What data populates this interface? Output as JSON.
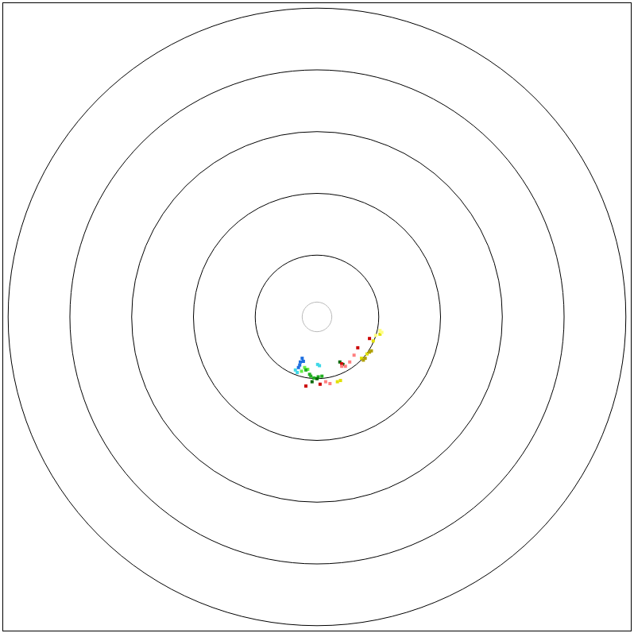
{
  "chart_data": {
    "type": "polar_scatter",
    "xlim": [
      -5.08,
      5.08
    ],
    "ylim": [
      -5.08,
      5.08
    ],
    "tick_labels": false,
    "grid": false,
    "rings": [
      1,
      2,
      3,
      4,
      5
    ],
    "center_ring": 0.24,
    "echoes": [
      {
        "color": "#1e6fe0",
        "points": [
          [
            -0.27,
            -0.73
          ],
          [
            -0.3,
            -0.82
          ],
          [
            -0.24,
            -0.67
          ],
          [
            -0.28,
            -0.78
          ],
          [
            -0.22,
            -0.72
          ]
        ]
      },
      {
        "color": "#40d8e8",
        "points": [
          [
            0.01,
            -0.77
          ],
          [
            -0.35,
            -0.86
          ],
          [
            0.04,
            -0.79
          ],
          [
            -0.32,
            -0.9
          ]
        ]
      },
      {
        "color": "#66ee44",
        "points": [
          [
            -0.2,
            -0.82
          ],
          [
            -0.15,
            -0.85
          ],
          [
            -0.25,
            -0.88
          ]
        ]
      },
      {
        "color": "#22b022",
        "points": [
          [
            -0.18,
            -0.86
          ],
          [
            -0.12,
            -0.93
          ],
          [
            -0.05,
            -0.99
          ],
          [
            0.08,
            -0.96
          ],
          [
            -0.1,
            -0.96
          ],
          [
            0.02,
            -0.97
          ]
        ]
      },
      {
        "color": "#0a6a0a",
        "points": [
          [
            0.37,
            -0.73
          ],
          [
            0.42,
            -0.77
          ],
          [
            0.0,
            -1.0
          ],
          [
            -0.08,
            -1.05
          ]
        ]
      },
      {
        "color": "#cc0000",
        "points": [
          [
            -0.18,
            -1.12
          ],
          [
            0.05,
            -1.09
          ],
          [
            0.85,
            -0.35
          ],
          [
            0.66,
            -0.5
          ],
          [
            0.4,
            -0.76
          ]
        ]
      },
      {
        "color": "#ff8080",
        "points": [
          [
            0.4,
            -0.8
          ],
          [
            0.53,
            -0.73
          ],
          [
            0.14,
            -1.05
          ],
          [
            0.21,
            -1.08
          ],
          [
            0.46,
            -0.8
          ],
          [
            0.6,
            -0.62
          ]
        ]
      },
      {
        "color": "#e0e000",
        "points": [
          [
            0.72,
            -0.67
          ],
          [
            0.81,
            -0.6
          ],
          [
            0.91,
            -0.39
          ],
          [
            0.33,
            -1.05
          ],
          [
            1.02,
            -0.28
          ],
          [
            0.38,
            -1.03
          ]
        ]
      },
      {
        "color": "#b0a000",
        "points": [
          [
            0.78,
            -0.67
          ],
          [
            0.85,
            -0.57
          ],
          [
            0.88,
            -0.55
          ],
          [
            0.75,
            -0.7
          ]
        ]
      },
      {
        "color": "#ffff80",
        "points": [
          [
            1.02,
            -0.22
          ],
          [
            0.95,
            -0.3
          ],
          [
            1.05,
            -0.25
          ]
        ]
      }
    ]
  }
}
